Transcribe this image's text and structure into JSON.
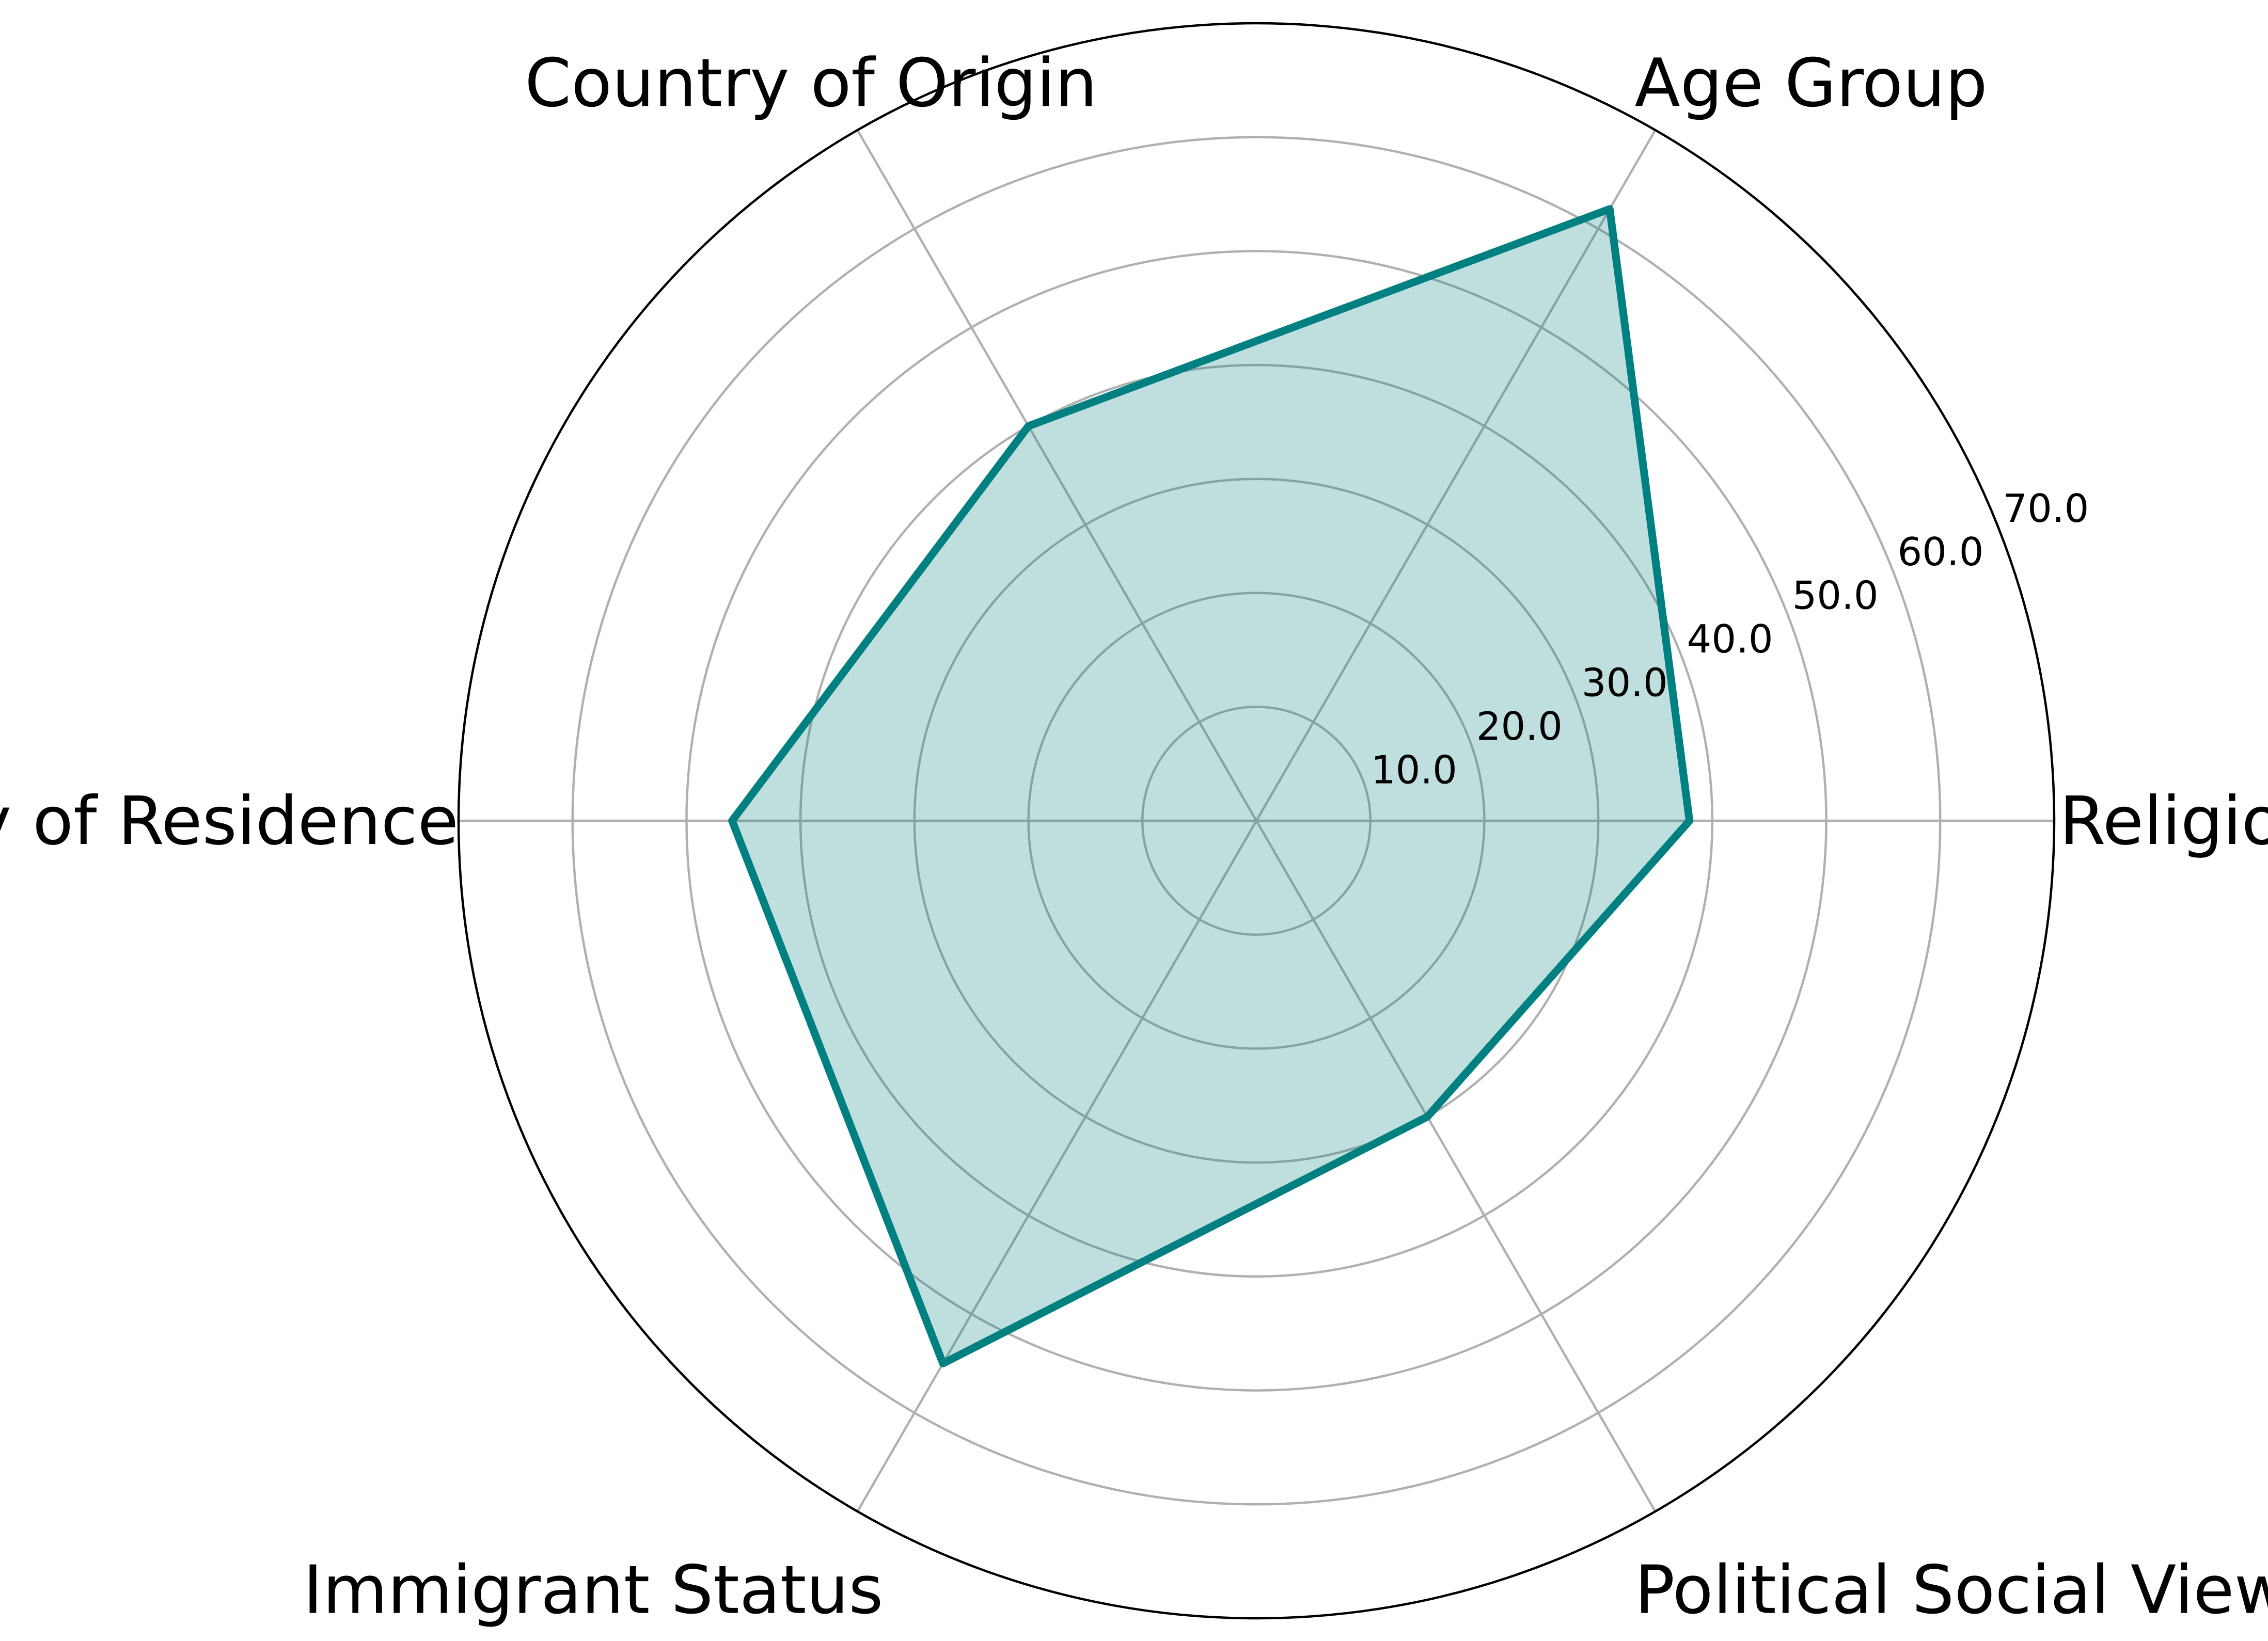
{
  "chart_data": {
    "type": "radar",
    "categories": [
      "Religion",
      "Age Group",
      "Country of Origin",
      "Country of Residence",
      "Immigrant Status",
      "Political Social Views"
    ],
    "series": [
      {
        "values": [
          38,
          62,
          40,
          46,
          55,
          30
        ],
        "line_color": "#008080",
        "fill_color": "#008080",
        "fill_opacity": 0.25
      }
    ],
    "radial_ticks": [
      "10.0",
      "20.0",
      "30.0",
      "40.0",
      "50.0",
      "60.0",
      "70.0"
    ],
    "radial_tick_values": [
      10,
      20,
      30,
      40,
      50,
      60,
      70
    ],
    "rlim": [
      0,
      70
    ],
    "grid": true,
    "legend": "none"
  }
}
